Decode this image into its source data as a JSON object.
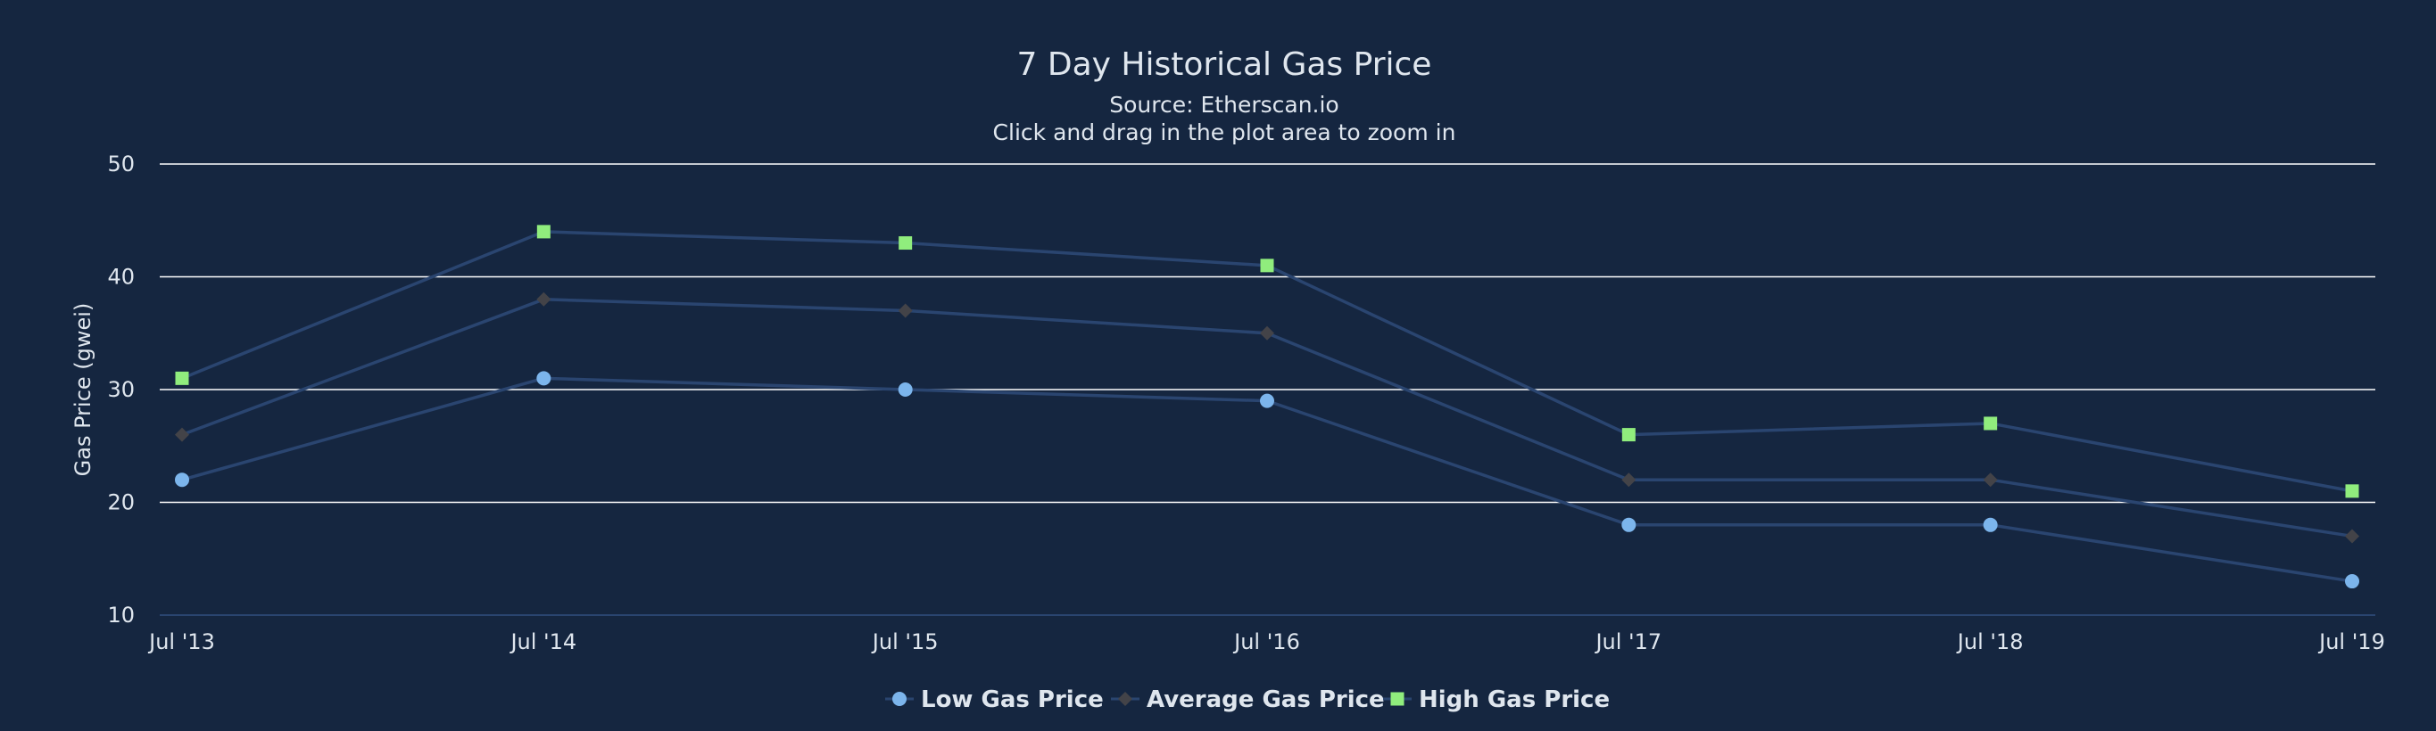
{
  "chart_data": {
    "type": "line",
    "title": "7 Day Historical Gas Price",
    "subtitle": "Source: Etherscan.io",
    "caption": "Click and drag in the plot area to zoom in",
    "xlabel": "",
    "ylabel": "Gas Price (gwei)",
    "x": [
      "Jul '13",
      "Jul '14",
      "Jul '15",
      "Jul '16",
      "Jul '17",
      "Jul '18",
      "Jul '19"
    ],
    "ylim": [
      10,
      50
    ],
    "yticks": [
      10,
      20,
      30,
      40,
      50
    ],
    "grid": true,
    "legend_position": "bottom-center",
    "series": [
      {
        "name": "Low Gas Price",
        "marker": "circle",
        "marker_color": "#7cb5ec",
        "line_color": "#2a4570",
        "values": [
          22,
          31,
          30,
          29,
          18,
          18,
          13
        ]
      },
      {
        "name": "Average Gas Price",
        "marker": "diamond",
        "marker_color": "#434348",
        "line_color": "#2a4570",
        "values": [
          26,
          38,
          37,
          35,
          22,
          22,
          17
        ]
      },
      {
        "name": "High Gas Price",
        "marker": "square",
        "marker_color": "#90ed7d",
        "line_color": "#2a4570",
        "values": [
          31,
          44,
          43,
          41,
          26,
          27,
          21
        ]
      }
    ]
  },
  "colors": {
    "background": "#152640",
    "text": "#dfe6ee",
    "grid": "#ffffff",
    "axis_line": "#2a4570"
  }
}
